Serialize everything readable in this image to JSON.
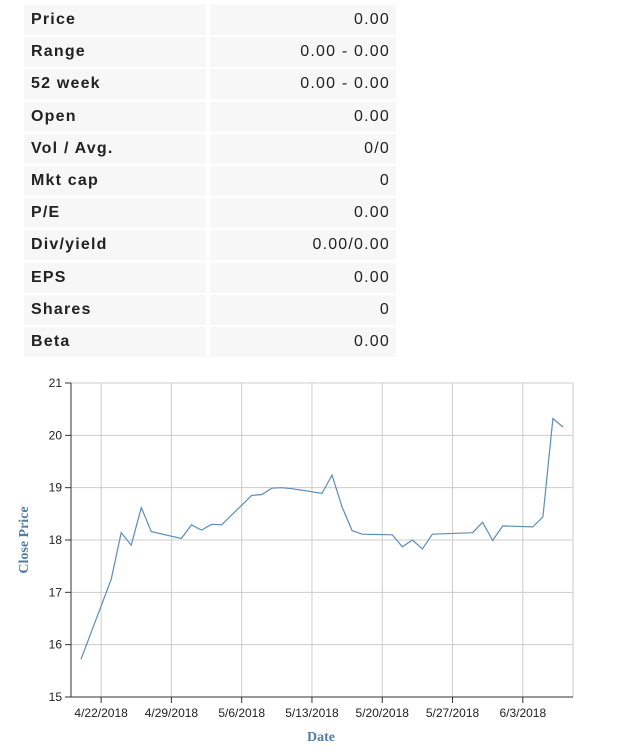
{
  "stats": [
    {
      "label": "Price",
      "value": "0.00"
    },
    {
      "label": "Range",
      "value": "0.00 - 0.00"
    },
    {
      "label": "52 week",
      "value": "0.00 - 0.00"
    },
    {
      "label": "Open",
      "value": "0.00"
    },
    {
      "label": "Vol / Avg.",
      "value": "0/0"
    },
    {
      "label": "Mkt cap",
      "value": "0"
    },
    {
      "label": "P/E",
      "value": "0.00"
    },
    {
      "label": "Div/yield",
      "value": "0.00/0.00"
    },
    {
      "label": "EPS",
      "value": "0.00"
    },
    {
      "label": "Shares",
      "value": "0"
    },
    {
      "label": "Beta",
      "value": "0.00"
    }
  ],
  "chart_data": {
    "type": "line",
    "xlabel": "Date",
    "ylabel": "Close Price",
    "ylim": [
      15,
      21
    ],
    "y_ticks": [
      15,
      16,
      17,
      18,
      19,
      20,
      21
    ],
    "x_ticks": [
      "4/22/2018",
      "4/29/2018",
      "5/6/2018",
      "5/13/2018",
      "5/20/2018",
      "5/27/2018",
      "6/3/2018"
    ],
    "xlim": [
      "2018-04-19",
      "2018-06-08"
    ],
    "grid": true,
    "line_color": "#5b8db8",
    "series": [
      {
        "x": [
          "2018-04-20",
          "2018-04-23",
          "2018-04-24",
          "2018-04-25",
          "2018-04-26",
          "2018-04-27",
          "2018-04-30",
          "2018-05-01",
          "2018-05-02",
          "2018-05-03",
          "2018-05-04",
          "2018-05-07",
          "2018-05-08",
          "2018-05-09",
          "2018-05-10",
          "2018-05-11",
          "2018-05-14",
          "2018-05-15",
          "2018-05-16",
          "2018-05-17",
          "2018-05-18",
          "2018-05-21",
          "2018-05-22",
          "2018-05-23",
          "2018-05-24",
          "2018-05-25",
          "2018-05-29",
          "2018-05-30",
          "2018-05-31",
          "2018-06-01",
          "2018-06-04",
          "2018-06-05",
          "2018-06-06",
          "2018-06-07"
        ],
        "y": [
          15.72,
          17.25,
          18.14,
          17.9,
          18.62,
          18.16,
          18.03,
          18.29,
          18.19,
          18.3,
          18.29,
          18.85,
          18.87,
          18.99,
          19.0,
          18.98,
          18.89,
          19.24,
          18.63,
          18.18,
          18.11,
          18.1,
          17.87,
          18.0,
          17.83,
          18.11,
          18.14,
          18.34,
          17.99,
          18.27,
          18.25,
          18.44,
          20.32,
          20.16
        ]
      }
    ]
  }
}
